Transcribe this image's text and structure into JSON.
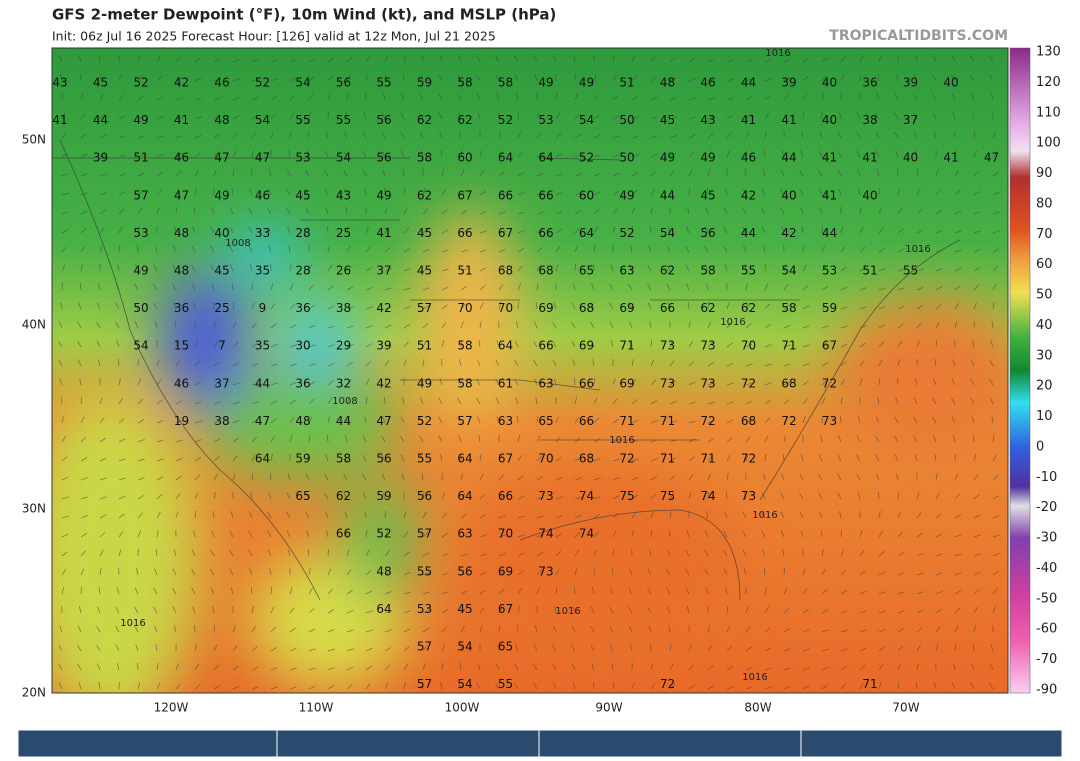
{
  "header": {
    "title": "GFS 2-meter Dewpoint (°F), 10m Wind (kt), and MSLP (hPa)",
    "subtitle": "Init: 06z Jul 16 2025   Forecast Hour: [126]   valid at 12z Mon, Jul 21 2025",
    "site": "TROPICALTIDBITS.COM"
  },
  "colorbar": {
    "ticks": [
      130,
      120,
      110,
      100,
      90,
      80,
      70,
      60,
      50,
      40,
      30,
      20,
      10,
      0,
      -10,
      -20,
      -30,
      -40,
      -50,
      -60,
      -70,
      -90
    ]
  },
  "axes": {
    "lat_labels": [
      "50N",
      "40N",
      "30N",
      "20N"
    ],
    "lon_labels": [
      "120W",
      "110W",
      "100W",
      "90W",
      "80W",
      "70W"
    ]
  },
  "map": {
    "dewpoint_rows": [
      [
        43,
        45,
        52,
        42,
        46,
        52,
        54,
        56,
        55,
        59,
        58,
        58,
        49,
        49,
        51,
        48,
        46,
        44,
        39,
        40,
        36,
        39,
        40
      ],
      [
        41,
        44,
        49,
        41,
        48,
        54,
        55,
        55,
        56,
        62,
        62,
        52,
        53,
        54,
        50,
        45,
        43,
        41,
        41,
        40,
        38,
        37
      ],
      [
        null,
        39,
        51,
        46,
        47,
        47,
        53,
        54,
        56,
        58,
        60,
        64,
        64,
        52,
        50,
        49,
        49,
        46,
        44,
        41,
        41,
        40,
        41,
        47
      ],
      [
        null,
        null,
        57,
        47,
        49,
        46,
        45,
        43,
        49,
        62,
        67,
        66,
        66,
        60,
        49,
        44,
        45,
        42,
        40,
        41,
        40
      ],
      [
        null,
        null,
        53,
        48,
        40,
        33,
        28,
        25,
        41,
        45,
        66,
        67,
        66,
        64,
        52,
        54,
        56,
        44,
        42,
        44
      ],
      [
        null,
        null,
        49,
        48,
        45,
        35,
        28,
        26,
        37,
        45,
        51,
        68,
        68,
        65,
        63,
        62,
        58,
        55,
        54,
        53,
        51,
        55
      ],
      [
        null,
        null,
        50,
        36,
        25,
        9,
        36,
        38,
        42,
        57,
        70,
        70,
        69,
        68,
        69,
        66,
        62,
        62,
        58,
        59
      ],
      [
        null,
        null,
        54,
        15,
        7,
        35,
        30,
        29,
        39,
        51,
        58,
        64,
        66,
        69,
        71,
        73,
        73,
        70,
        71,
        67
      ],
      [
        null,
        null,
        null,
        46,
        37,
        44,
        36,
        32,
        42,
        49,
        58,
        61,
        63,
        66,
        69,
        73,
        73,
        72,
        68,
        72
      ],
      [
        null,
        null,
        null,
        19,
        38,
        47,
        48,
        44,
        47,
        52,
        57,
        63,
        65,
        66,
        71,
        71,
        72,
        68,
        72,
        73
      ],
      [
        null,
        null,
        null,
        null,
        null,
        64,
        59,
        58,
        56,
        55,
        64,
        67,
        70,
        68,
        72,
        71,
        71,
        72
      ],
      [
        null,
        null,
        null,
        null,
        null,
        null,
        65,
        62,
        59,
        56,
        64,
        66,
        73,
        74,
        75,
        75,
        74,
        73
      ],
      [
        null,
        null,
        null,
        null,
        null,
        null,
        null,
        66,
        52,
        57,
        63,
        70,
        74,
        74
      ],
      [
        null,
        null,
        null,
        null,
        null,
        null,
        null,
        null,
        48,
        55,
        56,
        69,
        73
      ],
      [
        null,
        null,
        null,
        null,
        null,
        null,
        null,
        null,
        64,
        53,
        45,
        67
      ],
      [
        null,
        null,
        null,
        null,
        null,
        null,
        null,
        null,
        null,
        57,
        54,
        65
      ],
      [
        null,
        null,
        null,
        null,
        null,
        null,
        null,
        null,
        null,
        57,
        54,
        55,
        null,
        null,
        null,
        72,
        null,
        null,
        null,
        null,
        71
      ]
    ],
    "pressure_labels": [
      1016,
      1008,
      1016,
      1008,
      1016,
      1016,
      1016,
      1016,
      1016,
      1016
    ]
  }
}
